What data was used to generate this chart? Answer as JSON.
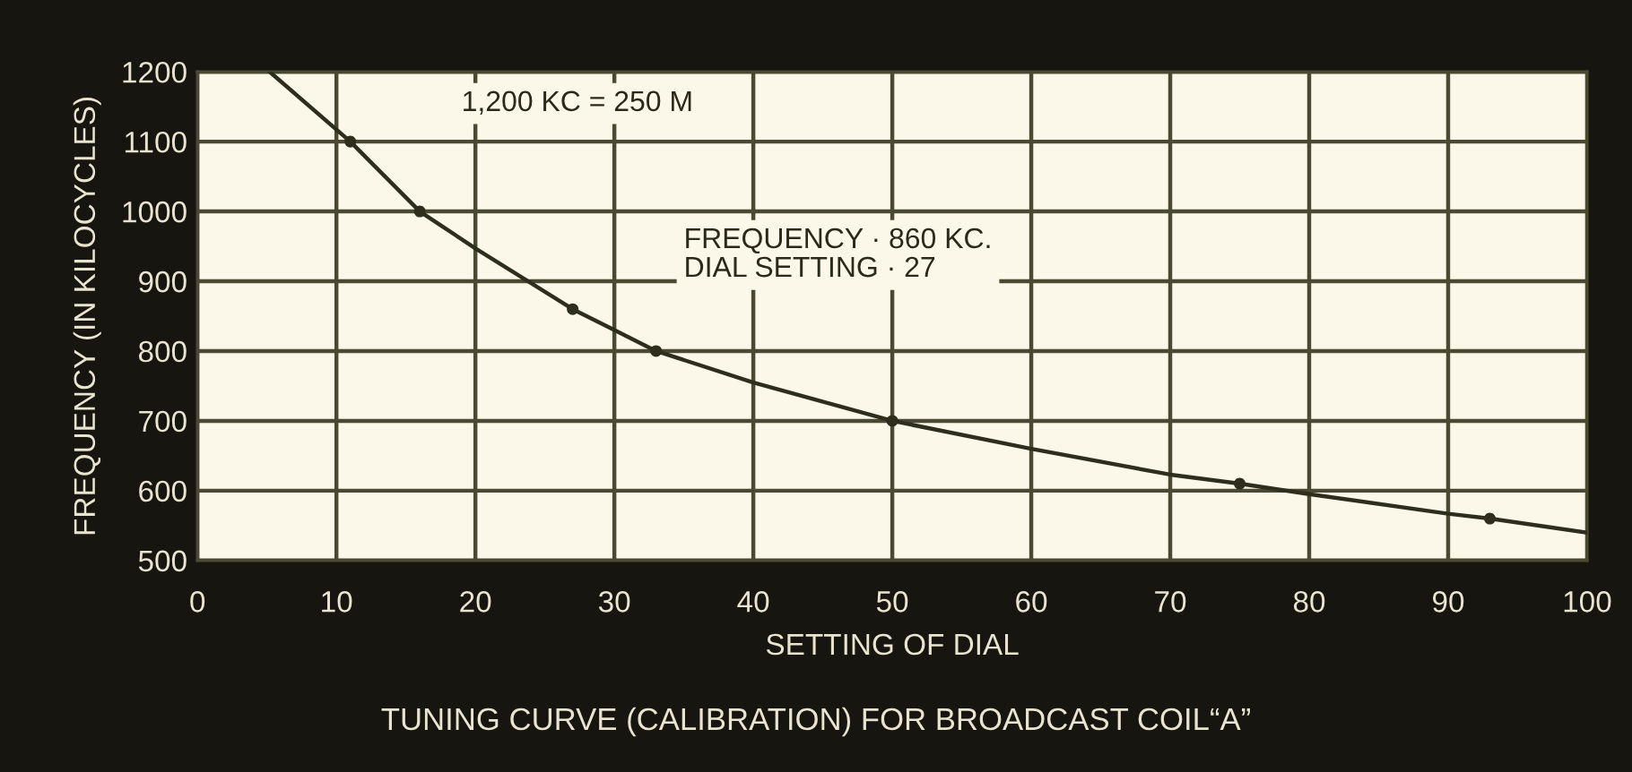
{
  "chart_data": {
    "type": "line",
    "title": "TUNING CURVE (CALIBRATION) FOR BROADCAST COIL“A”",
    "xlabel": "SETTING OF DIAL",
    "ylabel": "FREQUENCY (IN KILOCYCLES)",
    "xlim": [
      0,
      100
    ],
    "ylim": [
      500,
      1200
    ],
    "xticks": [
      0,
      10,
      20,
      30,
      40,
      50,
      60,
      70,
      80,
      90,
      100
    ],
    "yticks": [
      500,
      600,
      700,
      800,
      900,
      1000,
      1100,
      1200
    ],
    "grid": true,
    "legend": false,
    "series": [
      {
        "color": "#2e2e1e",
        "marker": "none",
        "line_style": "solid",
        "x": [
          5.2,
          11,
          16,
          20,
          27,
          30,
          33,
          40,
          50,
          60,
          70,
          75,
          80,
          90,
          93,
          100
        ],
        "values": [
          1200,
          1100,
          1000,
          947,
          860,
          830,
          800,
          755,
          700,
          660,
          623,
          610,
          595,
          567,
          560,
          540
        ]
      },
      {
        "type": "scatter",
        "color": "#2e2e1e",
        "marker": "circle",
        "x": [
          11,
          16,
          27,
          33,
          50,
          75,
          93
        ],
        "values": [
          1100,
          1000,
          860,
          800,
          700,
          610,
          560
        ]
      }
    ],
    "annotations": [
      "1,200 KC = 250 M",
      "FREQUENCY · 860 KC.\nDIAL SETTING · 27"
    ]
  }
}
